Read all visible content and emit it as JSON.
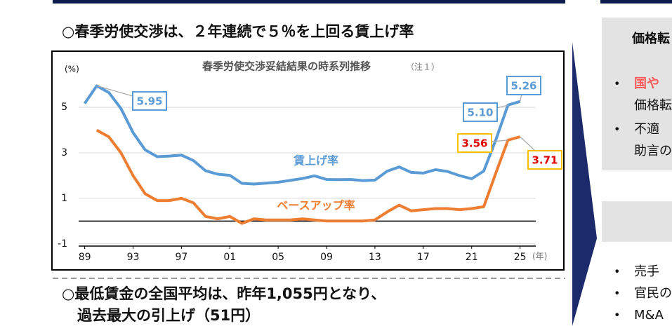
{
  "heading": "○春季労使交渉は、２年連続で５％を上回る賃上げ率",
  "chart_data": {
    "type": "line",
    "title": "春季労使交渉妥結結果の時系列推移",
    "note": "（注１）",
    "y_label": "(%)",
    "x_label": "(年)",
    "x": [
      1989,
      1990,
      1991,
      1992,
      1993,
      1994,
      1995,
      1996,
      1997,
      1998,
      1999,
      2000,
      2001,
      2002,
      2003,
      2004,
      2005,
      2006,
      2007,
      2008,
      2009,
      2010,
      2011,
      2012,
      2013,
      2014,
      2015,
      2016,
      2017,
      2018,
      2019,
      2020,
      2021,
      2022,
      2023,
      2024,
      2025
    ],
    "xlim": [
      1988.5,
      2026.3
    ],
    "xticks": [
      {
        "value": 1989,
        "label": "89"
      },
      {
        "value": 1993,
        "label": "93"
      },
      {
        "value": 1997,
        "label": "97"
      },
      {
        "value": 2001,
        "label": "01"
      },
      {
        "value": 2005,
        "label": "05"
      },
      {
        "value": 2009,
        "label": "09"
      },
      {
        "value": 2013,
        "label": "13"
      },
      {
        "value": 2017,
        "label": "17"
      },
      {
        "value": 2021,
        "label": "21"
      },
      {
        "value": 2025,
        "label": "25"
      }
    ],
    "ylim": [
      -1.1,
      6.3
    ],
    "yticks": [
      -1,
      1,
      3,
      5
    ],
    "grid": true,
    "series": [
      {
        "name": "賃上げ率",
        "color": "#5b9bd5",
        "values": [
          5.17,
          5.95,
          5.65,
          4.95,
          3.89,
          3.13,
          2.83,
          2.86,
          2.9,
          2.66,
          2.21,
          2.06,
          2.01,
          1.66,
          1.63,
          1.67,
          1.71,
          1.79,
          1.87,
          1.99,
          1.83,
          1.82,
          1.83,
          1.78,
          1.8,
          2.19,
          2.38,
          2.14,
          2.11,
          2.26,
          2.18,
          2.0,
          1.86,
          2.2,
          3.58,
          5.1,
          5.26
        ],
        "value_labels": [
          null,
          "5.95",
          null,
          null,
          null,
          null,
          null,
          null,
          null,
          null,
          null,
          null,
          null,
          null,
          null,
          null,
          null,
          null,
          null,
          null,
          null,
          null,
          null,
          null,
          null,
          null,
          null,
          null,
          null,
          null,
          null,
          null,
          null,
          null,
          null,
          "5.10",
          "5.26"
        ]
      },
      {
        "name": "ベースアップ率",
        "color": "#ed7d31",
        "values": [
          null,
          4.0,
          3.7,
          3.0,
          2.0,
          1.2,
          0.9,
          0.9,
          1.0,
          0.8,
          0.2,
          0.1,
          0.2,
          -0.1,
          0.1,
          0.05,
          0.05,
          0.05,
          0.1,
          0.05,
          0.0,
          0.0,
          0.0,
          0.0,
          0.05,
          0.4,
          0.7,
          0.45,
          0.5,
          0.55,
          0.55,
          0.5,
          0.55,
          0.63,
          2.12,
          3.56,
          3.71
        ],
        "value_labels": [
          null,
          null,
          null,
          null,
          null,
          null,
          null,
          null,
          null,
          null,
          null,
          null,
          null,
          null,
          null,
          null,
          null,
          null,
          null,
          null,
          null,
          null,
          null,
          null,
          null,
          null,
          null,
          null,
          null,
          null,
          null,
          null,
          null,
          null,
          null,
          "3.56",
          "3.71"
        ]
      }
    ]
  },
  "subheading": [
    "○最低賃金の全国平均は、昨年1,055円となり、",
    "過去最大の引上げ（51円）"
  ],
  "right_panel": {
    "header": "価格転",
    "bullets_top": [
      "国や",
      "価格転",
      "不適",
      "助言の"
    ],
    "bullets_bottom": [
      "売手",
      "官民の",
      "M&A"
    ]
  }
}
